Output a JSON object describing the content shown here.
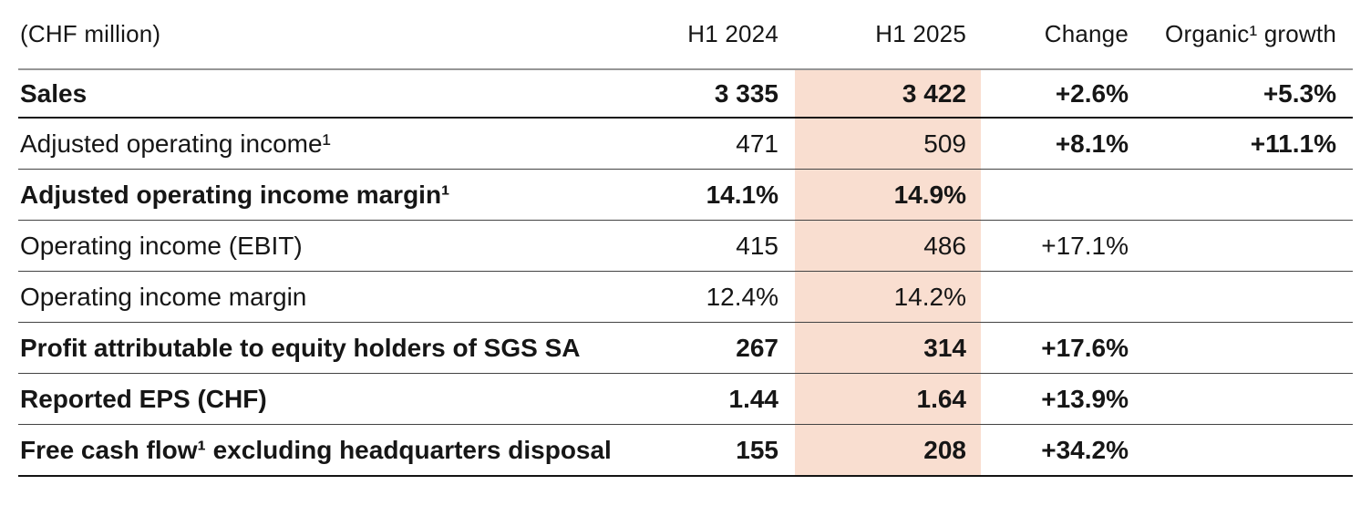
{
  "page": {
    "background": "#ffffff",
    "text_color": "#161616",
    "highlight_color": "#f9ded0",
    "header_rule_color": "#969696",
    "row_rule_color": "#434343",
    "strong_rule_color": "#141414"
  },
  "table": {
    "unit_label": "(CHF million)",
    "columns": [
      {
        "key": "h1_2024",
        "label": "H1 2024"
      },
      {
        "key": "h1_2025",
        "label": "H1 2025"
      },
      {
        "key": "change",
        "label": "Change"
      },
      {
        "key": "organic",
        "label": "Organic¹ growth"
      }
    ],
    "rows": [
      {
        "label": "Sales",
        "h1_2024": "3 335",
        "h1_2025": "3 422",
        "change": "+2.6%",
        "organic": "+5.3%",
        "label_bold": true,
        "values_bold": true,
        "changes_bold": true
      },
      {
        "label": "Adjusted operating income¹",
        "h1_2024": "471",
        "h1_2025": "509",
        "change": "+8.1%",
        "organic": "+11.1%",
        "label_bold": false,
        "values_bold": false,
        "changes_bold": true
      },
      {
        "label": "Adjusted operating income margin¹",
        "h1_2024": "14.1%",
        "h1_2025": "14.9%",
        "change": "",
        "organic": "",
        "label_bold": true,
        "values_bold": true,
        "changes_bold": false
      },
      {
        "label": "Operating income (EBIT)",
        "h1_2024": "415",
        "h1_2025": "486",
        "change": "+17.1%",
        "organic": "",
        "label_bold": false,
        "values_bold": false,
        "changes_bold": false
      },
      {
        "label": "Operating income margin",
        "h1_2024": "12.4%",
        "h1_2025": "14.2%",
        "change": "",
        "organic": "",
        "label_bold": false,
        "values_bold": false,
        "changes_bold": false
      },
      {
        "label": "Profit attributable to equity holders of SGS SA",
        "h1_2024": "267",
        "h1_2025": "314",
        "change": "+17.6%",
        "organic": "",
        "label_bold": true,
        "values_bold": true,
        "changes_bold": true
      },
      {
        "label": "Reported EPS (CHF)",
        "h1_2024": "1.44",
        "h1_2025": "1.64",
        "change": "+13.9%",
        "organic": "",
        "label_bold": true,
        "values_bold": true,
        "changes_bold": true
      },
      {
        "label": "Free cash flow¹ excluding headquarters disposal",
        "h1_2024": "155",
        "h1_2025": "208",
        "change": "+34.2%",
        "organic": "",
        "label_bold": true,
        "values_bold": true,
        "changes_bold": true
      }
    ]
  }
}
